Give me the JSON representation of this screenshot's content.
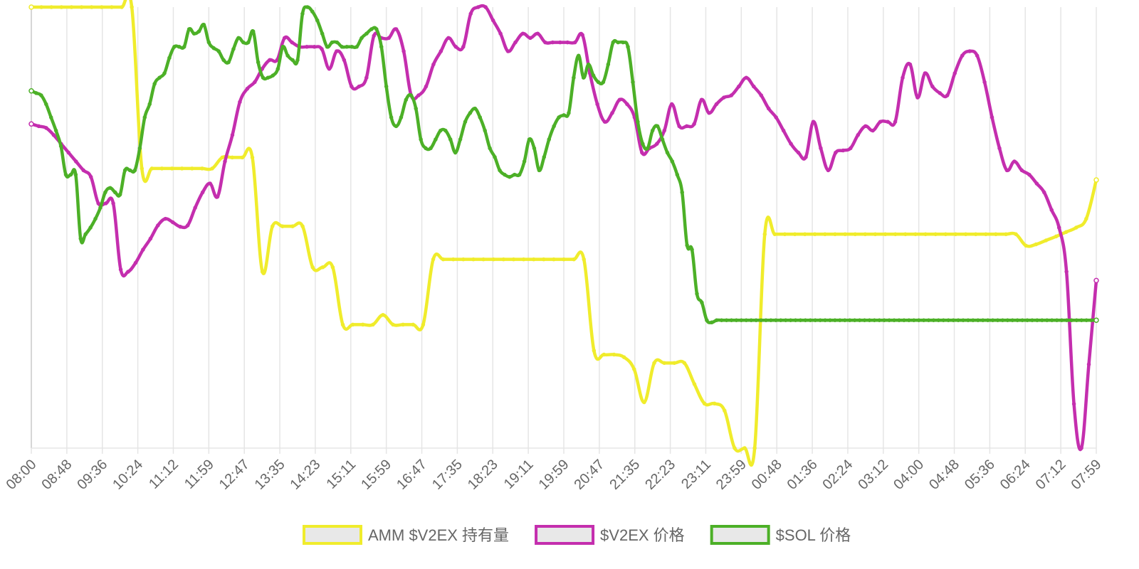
{
  "chart_data": {
    "type": "line",
    "title": "",
    "xlabel": "",
    "ylabel": "",
    "grid": true,
    "legend_position": "bottom-center",
    "x_ticks": [
      "08:00",
      "08:48",
      "09:36",
      "10:24",
      "11:12",
      "11:59",
      "12:47",
      "13:35",
      "14:23",
      "15:11",
      "15:59",
      "16:47",
      "17:35",
      "18:23",
      "19:11",
      "19:59",
      "20:47",
      "21:35",
      "22:23",
      "23:11",
      "23:59",
      "00:48",
      "01:36",
      "02:24",
      "03:12",
      "04:00",
      "04:48",
      "05:36",
      "06:24",
      "07:12",
      "07:59"
    ],
    "ylim": [
      0,
      100
    ],
    "series": [
      {
        "name": "AMM $V2EX 持有量",
        "color": "#f0ec2c",
        "values": [
          100,
          100,
          100,
          100,
          100,
          100,
          100,
          100,
          100,
          100,
          100,
          63.4,
          63.4,
          63.4,
          63.4,
          63.4,
          63.4,
          63.4,
          63.4,
          65.9,
          65.9,
          65.9,
          65.9,
          40,
          50.3,
          50.3,
          50.3,
          50.3,
          41,
          41,
          41,
          28,
          28,
          28,
          28,
          30.2,
          28,
          28,
          28,
          28,
          42.8,
          42.8,
          42.8,
          42.8,
          42.8,
          42.8,
          42.8,
          42.8,
          42.8,
          42.8,
          42.8,
          42.8,
          42.8,
          42.8,
          42.8,
          42.8,
          22.1,
          21.2,
          21.2,
          20.6,
          17.9,
          10.4,
          19.3,
          19.3,
          19.3,
          19.3,
          14.5,
          10.1,
          10.1,
          8.5,
          0,
          0,
          0,
          48.5,
          48.5,
          48.5,
          48.5,
          48.5,
          48.5,
          48.5,
          48.5,
          48.5,
          48.5,
          48.5,
          48.5,
          48.5,
          48.5,
          48.5,
          48.5,
          48.5,
          48.5,
          48.5,
          48.5,
          48.5,
          48.5,
          48.5,
          48.5,
          48.5,
          48.5,
          45.9,
          46.2,
          47.1,
          48,
          49,
          50,
          52,
          60.8
        ]
      },
      {
        "name": "$V2EX 价格",
        "color": "#c42eae",
        "values": [
          73.5,
          73,
          72.6,
          71,
          69,
          67,
          65,
          63,
          61.5,
          55.5,
          55.5,
          55.5,
          40.5,
          40,
          42,
          45,
          47.5,
          50.5,
          52,
          51.2,
          50.2,
          50.5,
          54.5,
          58,
          60,
          57,
          65,
          71,
          78.5,
          81.5,
          83,
          86,
          88,
          88,
          93,
          92,
          91,
          91,
          91,
          90.5,
          86,
          90,
          88,
          82,
          82,
          84,
          93.5,
          93,
          93,
          95,
          90,
          80,
          80,
          82,
          87,
          90,
          93,
          91,
          91,
          98.5,
          100,
          100,
          97,
          94,
          90,
          92,
          94,
          93,
          94,
          92,
          92,
          92,
          92,
          92,
          93.7,
          85,
          78,
          74,
          76,
          79,
          78,
          75,
          67,
          68,
          69,
          72,
          78,
          73,
          73,
          73.5,
          79,
          76,
          78,
          79.5,
          80,
          82,
          84,
          82,
          80,
          77,
          75,
          72,
          69,
          67,
          66,
          74,
          68,
          63,
          67,
          67.5,
          68,
          71,
          73,
          72,
          74,
          74,
          74,
          84,
          87,
          79.5,
          85,
          82,
          80.5,
          80,
          85,
          89,
          90,
          89,
          83,
          75,
          68,
          63,
          65,
          63,
          62,
          60,
          58,
          54,
          50,
          40,
          10,
          0,
          19,
          38
        ]
      },
      {
        "name": "$SOL 价格",
        "color": "#4cb027",
        "values": [
          81,
          80.5,
          80,
          78,
          75,
          72,
          68.5,
          62,
          62,
          62,
          47.5,
          48.5,
          50,
          52,
          54.5,
          58,
          59,
          58,
          57.5,
          63,
          63,
          63,
          68,
          75,
          78,
          82.6,
          84,
          85,
          88.5,
          91,
          91,
          91,
          95,
          94,
          94.5,
          96,
          92,
          90.7,
          90,
          88,
          87.5,
          90.5,
          93,
          92,
          92,
          94.5,
          87.5,
          84,
          84,
          84.5,
          86,
          91,
          89,
          88,
          88,
          98.5,
          100,
          99,
          97,
          94,
          91,
          92,
          92,
          91,
          91,
          91,
          91,
          93,
          94,
          95,
          95,
          91,
          82,
          75,
          73,
          75,
          79,
          80,
          77,
          70,
          68,
          68,
          70,
          72,
          72,
          70,
          67,
          70,
          74,
          76,
          77,
          75,
          72,
          68,
          66,
          63,
          62,
          61.5,
          62,
          62,
          65,
          70,
          68,
          63,
          66,
          70,
          73,
          75,
          75.5,
          76,
          84,
          89,
          84,
          87,
          84.5,
          83,
          83,
          87,
          92,
          92,
          92,
          91,
          83,
          74,
          69,
          68,
          72,
          73,
          70,
          67,
          65,
          62,
          58,
          46,
          45,
          35,
          33,
          29,
          28.5,
          29,
          29,
          29,
          29,
          29,
          29,
          29,
          29,
          29,
          29,
          29,
          29,
          29,
          29,
          29,
          29,
          29,
          29,
          29,
          29,
          29,
          29,
          29,
          29,
          29,
          29,
          29,
          29,
          29,
          29,
          29,
          29,
          29,
          29,
          29,
          29,
          29,
          29,
          29,
          29,
          29,
          29,
          29,
          29,
          29,
          29,
          29,
          29,
          29,
          29,
          29,
          29,
          29,
          29,
          29,
          29,
          29,
          29,
          29,
          29,
          29,
          29,
          29,
          29,
          29,
          29,
          29,
          29,
          29,
          29,
          29,
          29,
          29,
          29,
          29,
          29,
          29,
          29
        ]
      }
    ]
  }
}
